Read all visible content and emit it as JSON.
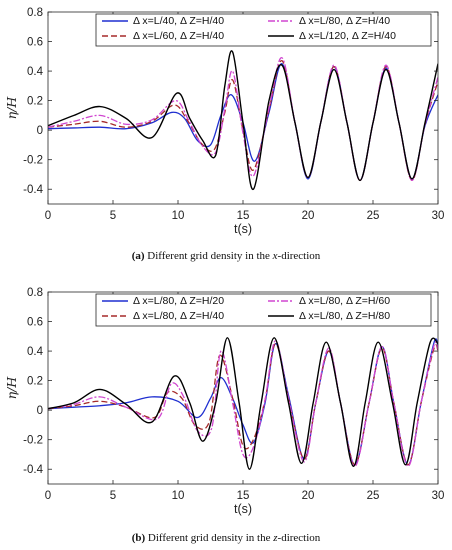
{
  "captions": [
    {
      "label": "(a)",
      "text": "Different grid density in the",
      "axis": "x",
      "suffix": "-direction"
    },
    {
      "label": "(b)",
      "text": "Different grid density in the",
      "axis": "z",
      "suffix": "-direction"
    }
  ],
  "chart_data": [
    {
      "type": "line",
      "title": "",
      "xlabel": "t(s)",
      "ylabel": "η/H",
      "xlim": [
        0,
        30
      ],
      "ylim": [
        -0.5,
        0.8
      ],
      "xticks": [
        0,
        5,
        10,
        15,
        20,
        25,
        30
      ],
      "yticks": [
        0.8,
        0.6,
        0.4,
        0.2,
        0,
        -0.2,
        -0.4
      ],
      "ytick_labels": [
        "0.8",
        "0.6",
        "0.4",
        "0.2",
        "0",
        "-0.2",
        "-0.4"
      ],
      "grid": false,
      "legend_position": "top",
      "series": [
        {
          "name": "Δ x=L/40, Δ Z=H/40",
          "color": "#1f2fd0",
          "dash": "solid",
          "x": [
            0,
            2,
            4,
            6,
            8,
            9.5,
            10.5,
            11.5,
            12.5,
            13.3,
            14.1,
            15,
            15.9,
            17,
            18,
            19,
            20,
            21,
            22,
            23,
            24,
            25,
            26,
            27,
            28,
            29,
            30
          ],
          "y": [
            0.01,
            0.015,
            0.02,
            0.01,
            0.05,
            0.12,
            0.08,
            -0.07,
            -0.1,
            0.1,
            0.24,
            0.05,
            -0.21,
            0.12,
            0.45,
            0.05,
            -0.33,
            0.06,
            0.43,
            0.05,
            -0.34,
            0.05,
            0.42,
            0.05,
            -0.33,
            0.03,
            0.24
          ]
        },
        {
          "name": "Δ x=L/60, Δ Z=H/40",
          "color": "#a52a2a",
          "dash": "6,3",
          "x": [
            0,
            2,
            4,
            6,
            8,
            9.7,
            10.7,
            11.8,
            12.8,
            13.6,
            14.2,
            15,
            15.8,
            17,
            18,
            19,
            20,
            21,
            22,
            23,
            24,
            25,
            26,
            27,
            28,
            29,
            30
          ],
          "y": [
            0.02,
            0.04,
            0.06,
            0.02,
            0.06,
            0.17,
            0.07,
            -0.09,
            -0.13,
            0.12,
            0.34,
            0.0,
            -0.27,
            0.14,
            0.47,
            0.05,
            -0.32,
            0.06,
            0.43,
            0.05,
            -0.34,
            0.05,
            0.43,
            0.05,
            -0.34,
            0.04,
            0.33
          ]
        },
        {
          "name": "Δ x=L/80, Δ Z=H/40",
          "color": "#d046d0",
          "dash": "7,2,2,2",
          "x": [
            0,
            2,
            4,
            6,
            8,
            9.8,
            10.8,
            11.9,
            12.9,
            13.6,
            14.2,
            15,
            15.8,
            17,
            18,
            19,
            20,
            21,
            22,
            23,
            24,
            25,
            26,
            27,
            28,
            29,
            30
          ],
          "y": [
            0.02,
            0.06,
            0.1,
            0.04,
            0.07,
            0.2,
            0.07,
            -0.11,
            -0.15,
            0.14,
            0.4,
            -0.02,
            -0.31,
            0.15,
            0.49,
            0.05,
            -0.32,
            0.06,
            0.44,
            0.05,
            -0.34,
            0.05,
            0.44,
            0.05,
            -0.34,
            0.04,
            0.36
          ]
        },
        {
          "name": "Δ x=L/120, Δ Z=H/40",
          "color": "#000000",
          "dash": "solid",
          "x": [
            0,
            2,
            4,
            6,
            8,
            9.9,
            10.9,
            11.9,
            12.9,
            13.6,
            14.2,
            15,
            15.8,
            17,
            18,
            19,
            20,
            21,
            22,
            23,
            24,
            25,
            26,
            27,
            28,
            29,
            30
          ],
          "y": [
            0.03,
            0.1,
            0.16,
            0.08,
            -0.05,
            0.25,
            0.08,
            -0.07,
            -0.17,
            0.3,
            0.53,
            0.05,
            -0.4,
            0.2,
            0.44,
            0.05,
            -0.32,
            0.06,
            0.41,
            0.05,
            -0.34,
            0.05,
            0.41,
            0.05,
            -0.33,
            0.05,
            0.45
          ]
        }
      ]
    },
    {
      "type": "line",
      "title": "",
      "xlabel": "t(s)",
      "ylabel": "η/H",
      "xlim": [
        0,
        30
      ],
      "ylim": [
        -0.5,
        0.8
      ],
      "xticks": [
        0,
        5,
        10,
        15,
        20,
        25,
        30
      ],
      "yticks": [
        0.8,
        0.6,
        0.4,
        0.2,
        0,
        -0.2,
        -0.4
      ],
      "ytick_labels": [
        "0.8",
        "0.6",
        "0.4",
        "0.2",
        "0",
        "-0.2",
        "-0.4"
      ],
      "grid": false,
      "legend_position": "top",
      "series": [
        {
          "name": "Δ x=L/80, Δ Z=H/20",
          "color": "#1f2fd0",
          "dash": "solid",
          "x": [
            0,
            2,
            4,
            6,
            8,
            10,
            11.5,
            12.5,
            13.3,
            14.2,
            15,
            15.8,
            16.7,
            17.5,
            18.5,
            19.7,
            20.6,
            21.6,
            22.5,
            23.6,
            24.7,
            25.7,
            26.6,
            27.7,
            28.7,
            29.7,
            30
          ],
          "y": [
            0.01,
            0.02,
            0.03,
            0.05,
            0.09,
            0.06,
            -0.05,
            0.08,
            0.22,
            0.08,
            -0.1,
            -0.22,
            0.05,
            0.45,
            0.1,
            -0.33,
            0.05,
            0.4,
            0.05,
            -0.37,
            0.05,
            0.43,
            0.05,
            -0.37,
            0.05,
            0.46,
            0.43
          ]
        },
        {
          "name": "Δ x=L/80, Δ Z=H/40",
          "color": "#a52a2a",
          "dash": "6,3",
          "x": [
            0,
            2,
            4,
            6,
            8.2,
            9.2,
            10.3,
            11.3,
            12.4,
            13.2,
            14.2,
            15,
            15.8,
            16.7,
            17.5,
            18.5,
            19.7,
            20.6,
            21.6,
            22.5,
            23.6,
            24.7,
            25.7,
            26.6,
            27.7,
            28.7,
            29.7,
            30
          ],
          "y": [
            0.01,
            0.03,
            0.06,
            0.02,
            -0.05,
            0.12,
            0.08,
            -0.1,
            -0.08,
            0.37,
            0.08,
            -0.24,
            -0.2,
            0.07,
            0.45,
            0.08,
            -0.33,
            0.05,
            0.4,
            0.05,
            -0.37,
            0.05,
            0.42,
            0.05,
            -0.37,
            0.05,
            0.42,
            0.4
          ]
        },
        {
          "name": "Δ x=L/80, Δ Z=H/60",
          "color": "#d046d0",
          "dash": "7,2,2,2",
          "x": [
            0,
            2,
            4,
            6,
            8.4,
            9.5,
            10.5,
            11.5,
            12.6,
            13.3,
            14.2,
            15,
            15.8,
            16.7,
            17.5,
            18.5,
            19.7,
            20.6,
            21.6,
            22.5,
            23.6,
            24.7,
            25.7,
            26.6,
            27.7,
            28.7,
            29.7,
            30
          ],
          "y": [
            0.01,
            0.04,
            0.09,
            0.02,
            -0.06,
            0.18,
            0.08,
            -0.14,
            -0.12,
            0.4,
            0.05,
            -0.3,
            -0.25,
            0.07,
            0.47,
            0.08,
            -0.35,
            0.05,
            0.42,
            0.05,
            -0.38,
            0.05,
            0.43,
            0.05,
            -0.38,
            0.05,
            0.44,
            0.41
          ]
        },
        {
          "name": "Δ x=L/80, Δ Z=H/80",
          "color": "#000000",
          "dash": "solid",
          "x": [
            0,
            2,
            4,
            6,
            8,
            9.7,
            10.9,
            11.9,
            12.9,
            13.8,
            14.7,
            15.5,
            16.4,
            17.4,
            18.5,
            19.5,
            20.4,
            21.4,
            22.5,
            23.5,
            24.4,
            25.4,
            26.5,
            27.5,
            28.4,
            29.4,
            30
          ],
          "y": [
            0.01,
            0.05,
            0.14,
            0.04,
            -0.08,
            0.23,
            0.05,
            -0.21,
            0.05,
            0.49,
            0.05,
            -0.4,
            0.05,
            0.49,
            0.05,
            -0.36,
            0.05,
            0.46,
            0.05,
            -0.38,
            0.05,
            0.46,
            0.05,
            -0.37,
            0.05,
            0.46,
            0.45
          ]
        }
      ]
    }
  ]
}
